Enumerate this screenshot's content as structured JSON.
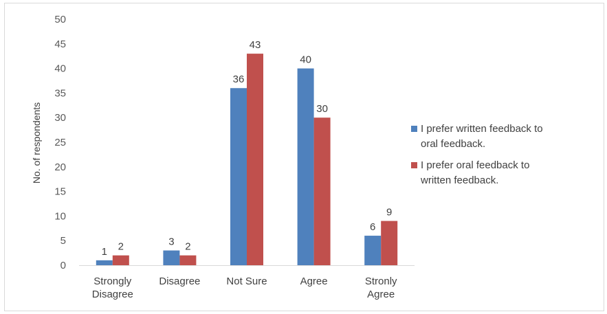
{
  "chart_data": {
    "type": "bar",
    "title": "",
    "xlabel": "",
    "ylabel": "No. of respondents",
    "ylim": [
      0,
      50
    ],
    "yticks": [
      0,
      5,
      10,
      15,
      20,
      25,
      30,
      35,
      40,
      45,
      50
    ],
    "categories": [
      [
        "Strongly",
        "Disagree"
      ],
      [
        "Disagree"
      ],
      [
        "Not Sure"
      ],
      [
        "Agree"
      ],
      [
        "Stronly",
        "Agree"
      ]
    ],
    "series": [
      {
        "name": [
          "I prefer written feedback to",
          "oral feedback."
        ],
        "color": "#4f81bd",
        "values": [
          1,
          3,
          36,
          40,
          6
        ]
      },
      {
        "name": [
          "I prefer oral feedback to",
          "written feedback."
        ],
        "color": "#c0504d",
        "values": [
          2,
          2,
          43,
          30,
          9
        ]
      }
    ],
    "grid": false,
    "legend": "right"
  }
}
